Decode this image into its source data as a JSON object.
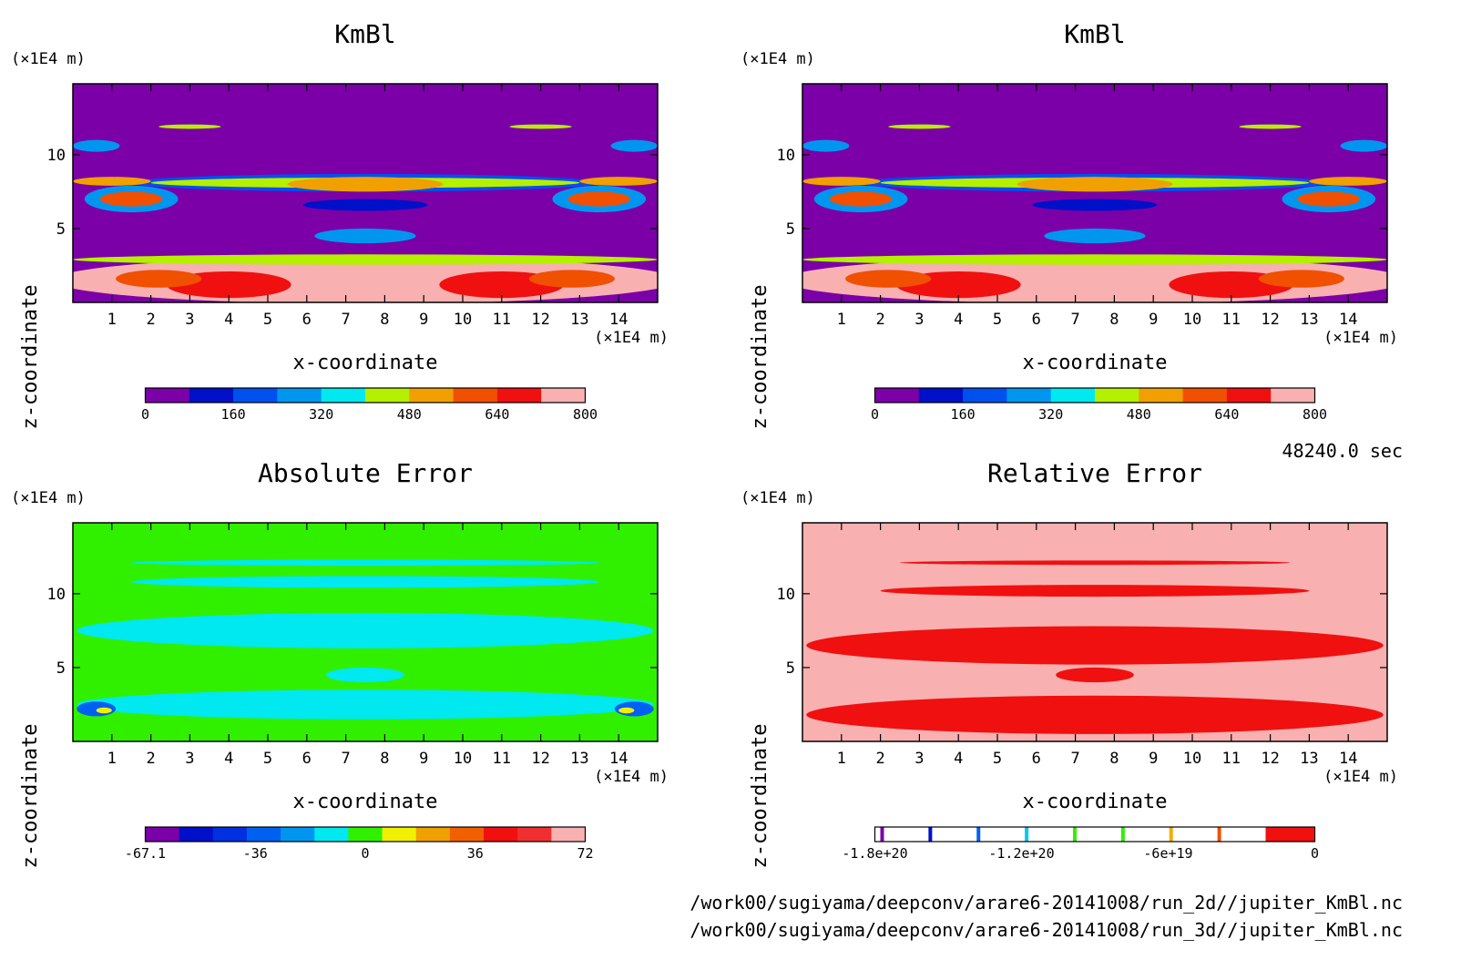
{
  "time_label": "48240.0 sec",
  "footer": {
    "file1": "/work00/sugiyama/deepconv/arare6-20141008/run_2d//jupiter_KmBl.nc",
    "file2": "/work00/sugiyama/deepconv/arare6-20141008/run_3d//jupiter_KmBl.nc"
  },
  "chart_data": [
    {
      "type": "heatmap",
      "title": "KmBl",
      "xlabel": "x-coordinate",
      "ylabel": "z-coordinate",
      "x_unit": "(×1E4 m)",
      "y_unit": "(×1E4 m)",
      "xlim": [
        0,
        15
      ],
      "ylim": [
        0,
        14.8
      ],
      "xticks": [
        "1",
        "2",
        "3",
        "4",
        "5",
        "6",
        "7",
        "8",
        "9",
        "10",
        "11",
        "12",
        "13",
        "14"
      ],
      "yticks": [
        "5",
        "10"
      ],
      "background": "#7b00a8",
      "colorbar": {
        "colors": [
          "#7b00a8",
          "#0010c8",
          "#0050f0",
          "#0096f0",
          "#00e8f0",
          "#b4f000",
          "#f0a000",
          "#f05000",
          "#f01010",
          "#f8b0b0"
        ],
        "tick_labels": [
          "0",
          "160",
          "320",
          "480",
          "640",
          "800"
        ]
      }
    },
    {
      "type": "heatmap",
      "title": "KmBl",
      "xlabel": "x-coordinate",
      "ylabel": "z-coordinate",
      "x_unit": "(×1E4 m)",
      "y_unit": "(×1E4 m)",
      "xlim": [
        0,
        15
      ],
      "ylim": [
        0,
        14.8
      ],
      "xticks": [
        "1",
        "2",
        "3",
        "4",
        "5",
        "6",
        "7",
        "8",
        "9",
        "10",
        "11",
        "12",
        "13",
        "14"
      ],
      "yticks": [
        "5",
        "10"
      ],
      "background": "#7b00a8",
      "colorbar": {
        "colors": [
          "#7b00a8",
          "#0010c8",
          "#0050f0",
          "#0096f0",
          "#00e8f0",
          "#b4f000",
          "#f0a000",
          "#f05000",
          "#f01010",
          "#f8b0b0"
        ],
        "tick_labels": [
          "0",
          "160",
          "320",
          "480",
          "640",
          "800"
        ]
      }
    },
    {
      "type": "heatmap",
      "title": "Absolute Error",
      "xlabel": "x-coordinate",
      "ylabel": "z-coordinate",
      "x_unit": "(×1E4 m)",
      "y_unit": "(×1E4 m)",
      "xlim": [
        0,
        15
      ],
      "ylim": [
        0,
        14.8
      ],
      "xticks": [
        "1",
        "2",
        "3",
        "4",
        "5",
        "6",
        "7",
        "8",
        "9",
        "10",
        "11",
        "12",
        "13",
        "14"
      ],
      "yticks": [
        "5",
        "10"
      ],
      "background": "#30f000",
      "colorbar": {
        "colors": [
          "#7b00a8",
          "#0010c8",
          "#0030e0",
          "#0060f0",
          "#0096f0",
          "#00e8f0",
          "#30f000",
          "#f0f000",
          "#f0a000",
          "#f06000",
          "#f01010",
          "#f03030",
          "#f8b0b0"
        ],
        "tick_labels": [
          "-67.1",
          "-36",
          "0",
          "36",
          "72"
        ]
      }
    },
    {
      "type": "heatmap",
      "title": "Relative Error",
      "xlabel": "x-coordinate",
      "ylabel": "z-coordinate",
      "x_unit": "(×1E4 m)",
      "y_unit": "(×1E4 m)",
      "xlim": [
        0,
        15
      ],
      "ylim": [
        0,
        14.8
      ],
      "xticks": [
        "1",
        "2",
        "3",
        "4",
        "5",
        "6",
        "7",
        "8",
        "9",
        "10",
        "11",
        "12",
        "13",
        "14"
      ],
      "yticks": [
        "5",
        "10"
      ],
      "background": "#f8b0b0",
      "colorbar": {
        "colors": [
          "#7b00a8",
          "#0010c8",
          "#0060f0",
          "#00c8f0",
          "#30f000",
          "#30f000",
          "#f0b000",
          "#f05000",
          "#f01010"
        ],
        "tick_labels": [
          "-1.8e+20",
          "-1.2e+20",
          "-6e+19",
          "0"
        ]
      }
    }
  ]
}
